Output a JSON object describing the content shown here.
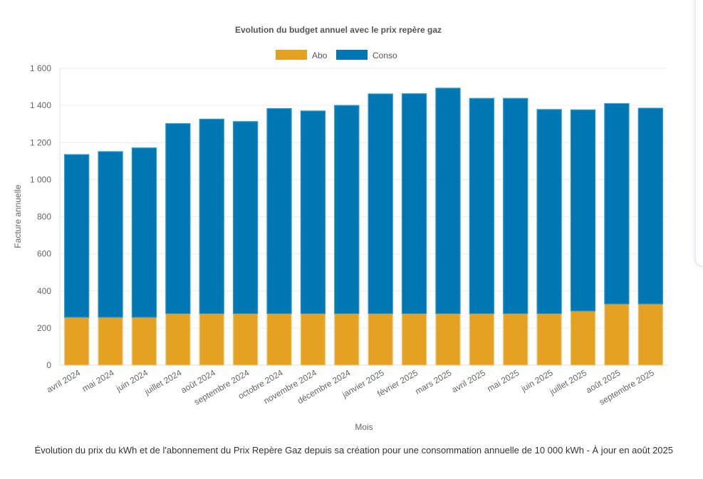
{
  "chart_data": {
    "type": "bar",
    "stacked": true,
    "title": "Evolution du budget annuel avec le prix repère gaz",
    "xlabel": "Mois",
    "ylabel": "Facture annuelle",
    "ylim": [
      0,
      1600
    ],
    "yticks": [
      "0",
      "200",
      "400",
      "600",
      "800",
      "1 000",
      "1 200",
      "1 400",
      "1 600"
    ],
    "ytick_values": [
      0,
      200,
      400,
      600,
      800,
      1000,
      1200,
      1400,
      1600
    ],
    "grid": true,
    "legend_position": "top-center",
    "categories": [
      "avril 2024",
      "mai 2024",
      "juin 2024",
      "juillet 2024",
      "août 2024",
      "septembre 2024",
      "octobre 2024",
      "novembre 2024",
      "décembre 2024",
      "janvier 2025",
      "février 2025",
      "mars 2025",
      "avril 2025",
      "mai 2025",
      "juin 2025",
      "juillet 2025",
      "août 2025",
      "septembre 2025"
    ],
    "series": [
      {
        "name": "Abo",
        "color": "#e5a122",
        "values": [
          258,
          258,
          258,
          278,
          278,
          278,
          278,
          278,
          278,
          278,
          278,
          278,
          278,
          278,
          278,
          292,
          330,
          330
        ]
      },
      {
        "name": "Conso",
        "color": "#0077b3",
        "values": [
          877,
          893,
          913,
          1024,
          1048,
          1035,
          1105,
          1092,
          1122,
          1184,
          1185,
          1215,
          1160,
          1160,
          1100,
          1084,
          1080,
          1055
        ]
      }
    ]
  },
  "caption": "Évolution du prix du kWh et de l'abonnement du Prix Repère Gaz depuis sa création pour une consommation annuelle de 10 000 kWh - À jour en août 2025"
}
